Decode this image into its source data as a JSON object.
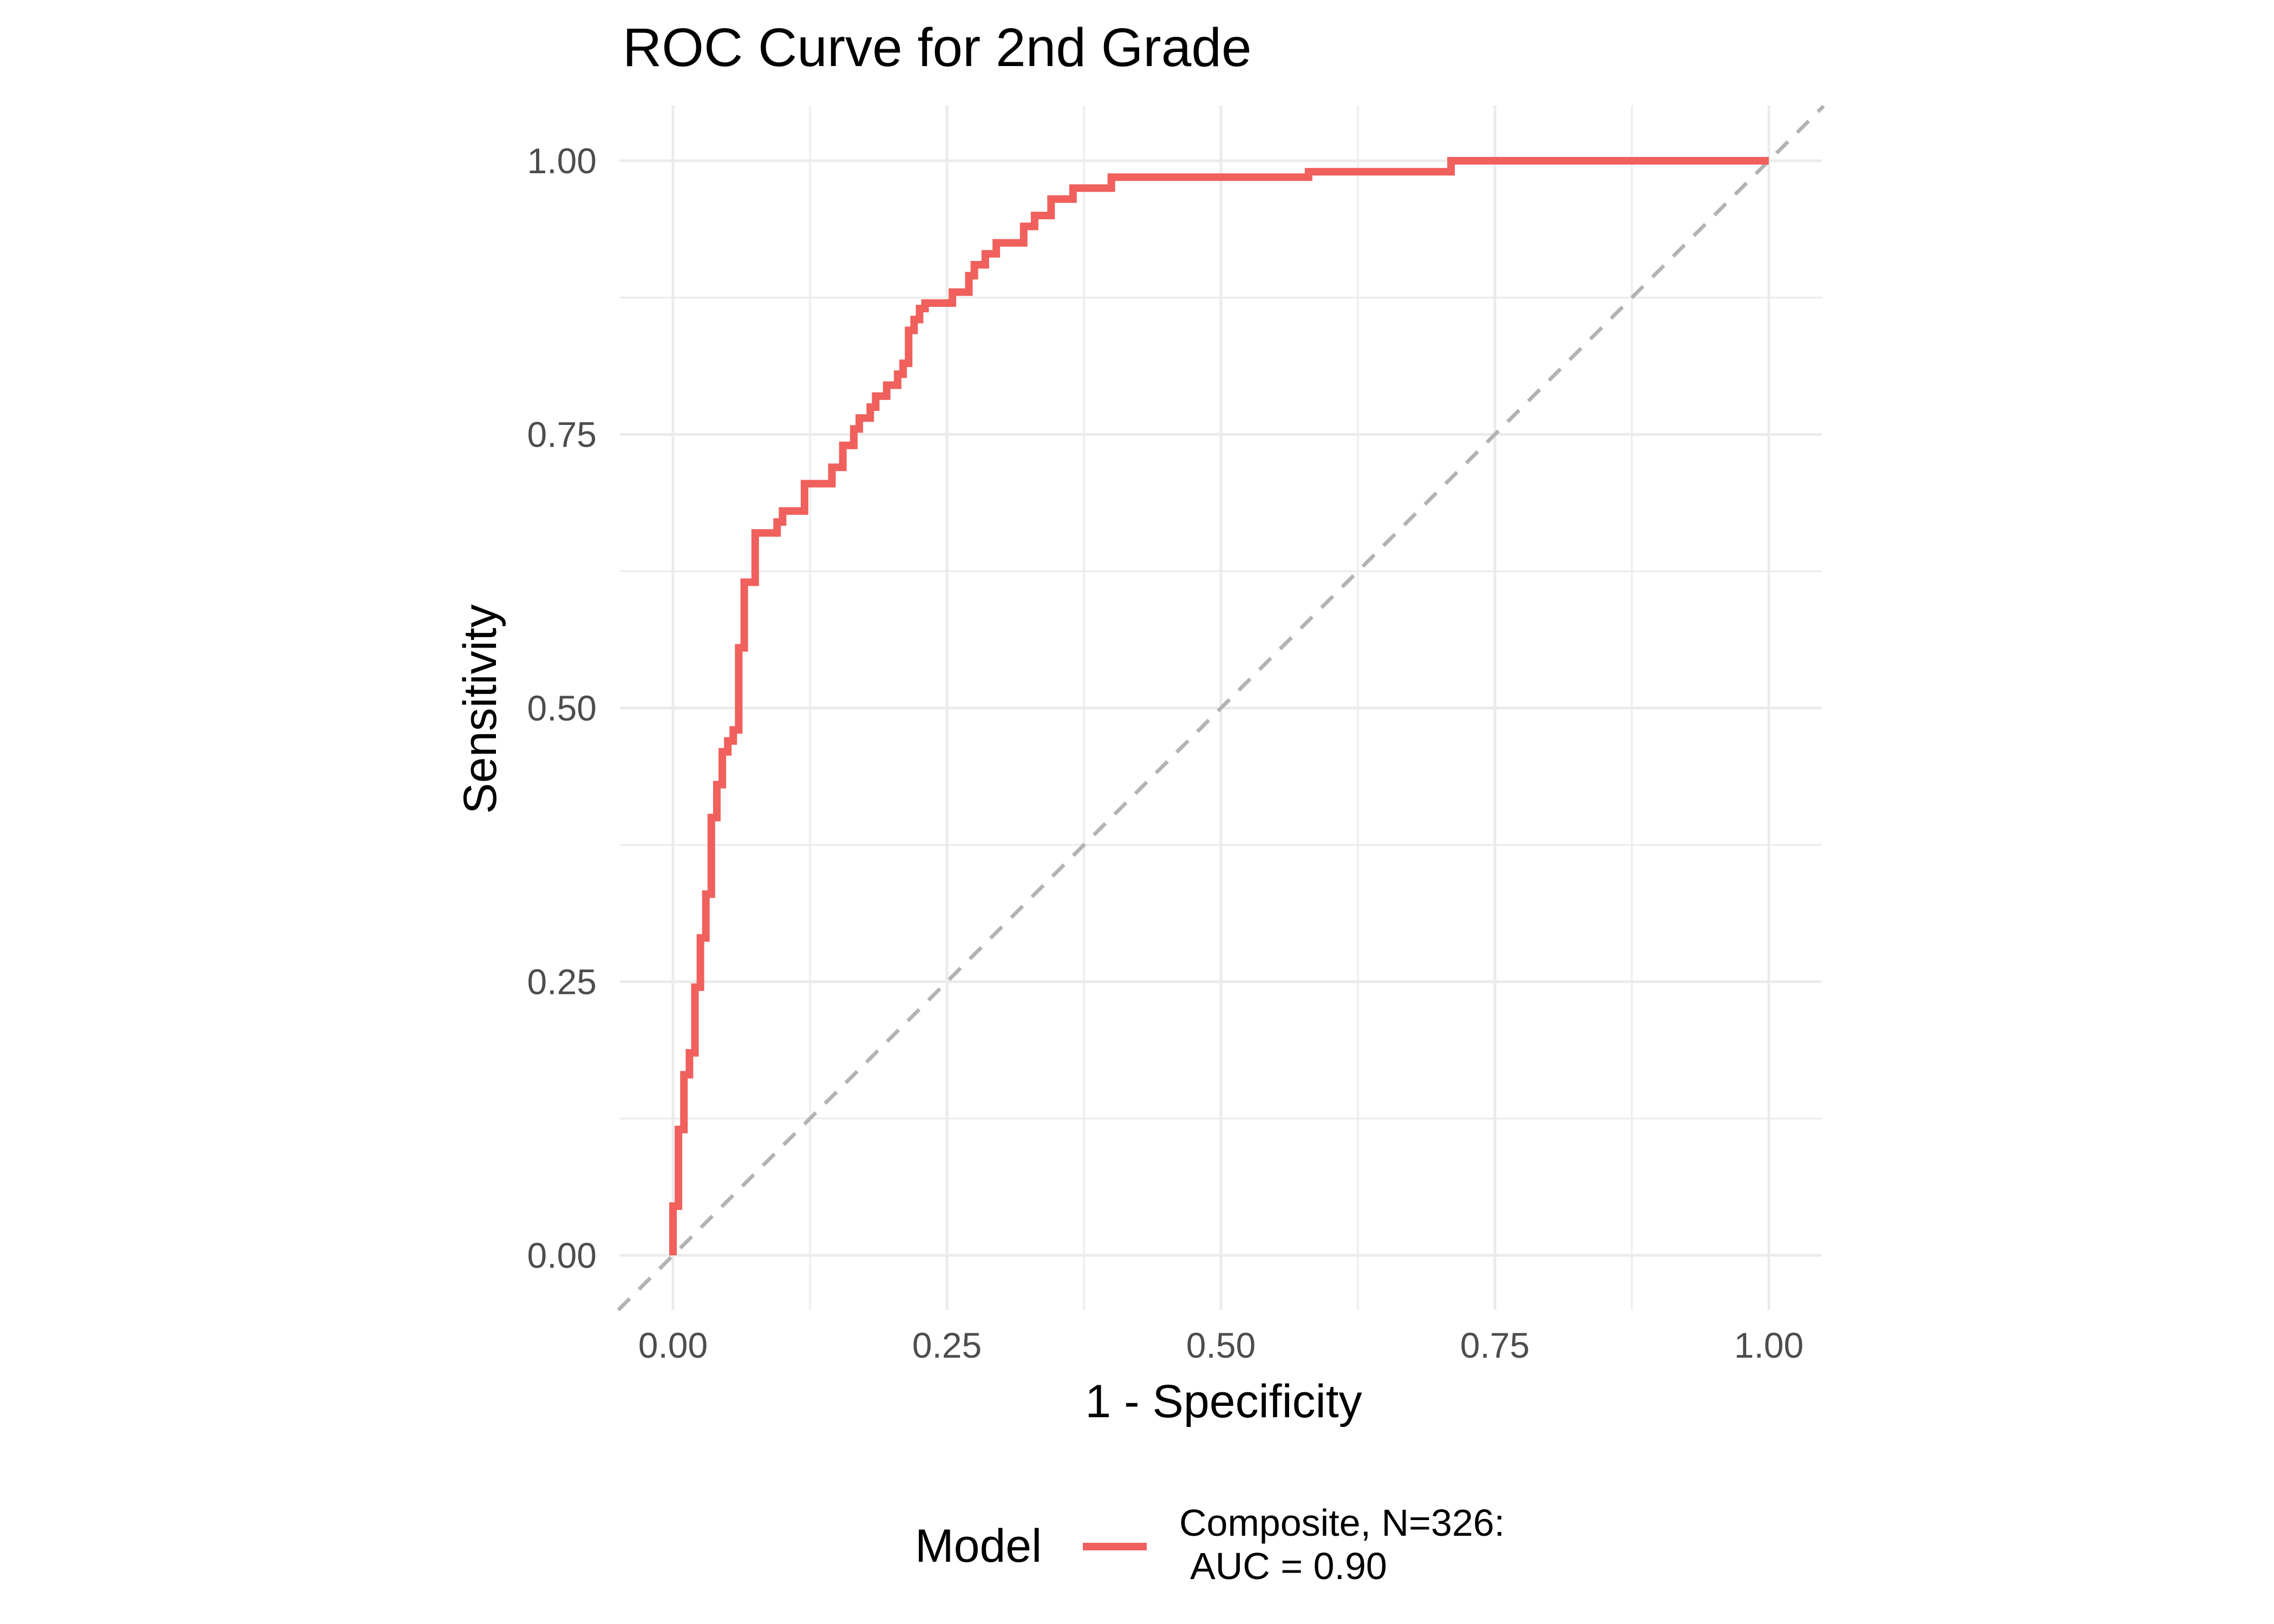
{
  "chart_data": {
    "type": "line",
    "title": "ROC Curve for 2nd Grade",
    "xlabel": "1 - Specificity",
    "ylabel": "Sensitivity",
    "xlim": [
      0,
      1
    ],
    "ylim": [
      0,
      1
    ],
    "x_ticks": [
      "0.00",
      "0.25",
      "0.50",
      "0.75",
      "1.00"
    ],
    "y_ticks": [
      "0.00",
      "0.25",
      "0.50",
      "0.75",
      "1.00"
    ],
    "grid": true,
    "legend": {
      "position": "bottom",
      "title": "Model",
      "entries": [
        {
          "line1": "Composite, N=326:",
          "line2": "AUC = 0.90",
          "color": "#F0605C"
        }
      ]
    },
    "reference_line": {
      "style": "dashed",
      "color": "#b3b3b3",
      "from": [
        0,
        0
      ],
      "to": [
        1,
        1
      ]
    },
    "series": [
      {
        "name": "Composite, N=326: AUC = 0.90",
        "color": "#F0605C",
        "points": [
          [
            0.0,
            0.0
          ],
          [
            0.0,
            0.045
          ],
          [
            0.005,
            0.045
          ],
          [
            0.005,
            0.115
          ],
          [
            0.01,
            0.115
          ],
          [
            0.01,
            0.165
          ],
          [
            0.015,
            0.165
          ],
          [
            0.015,
            0.185
          ],
          [
            0.02,
            0.185
          ],
          [
            0.02,
            0.245
          ],
          [
            0.025,
            0.245
          ],
          [
            0.025,
            0.29
          ],
          [
            0.03,
            0.29
          ],
          [
            0.03,
            0.33
          ],
          [
            0.035,
            0.33
          ],
          [
            0.035,
            0.4
          ],
          [
            0.04,
            0.4
          ],
          [
            0.04,
            0.43
          ],
          [
            0.045,
            0.43
          ],
          [
            0.045,
            0.46
          ],
          [
            0.05,
            0.46
          ],
          [
            0.05,
            0.47
          ],
          [
            0.055,
            0.47
          ],
          [
            0.055,
            0.48
          ],
          [
            0.06,
            0.48
          ],
          [
            0.06,
            0.555
          ],
          [
            0.065,
            0.555
          ],
          [
            0.065,
            0.615
          ],
          [
            0.075,
            0.615
          ],
          [
            0.075,
            0.66
          ],
          [
            0.095,
            0.66
          ],
          [
            0.095,
            0.67
          ],
          [
            0.1,
            0.67
          ],
          [
            0.1,
            0.68
          ],
          [
            0.12,
            0.68
          ],
          [
            0.12,
            0.705
          ],
          [
            0.145,
            0.705
          ],
          [
            0.145,
            0.72
          ],
          [
            0.155,
            0.72
          ],
          [
            0.155,
            0.74
          ],
          [
            0.165,
            0.74
          ],
          [
            0.165,
            0.755
          ],
          [
            0.17,
            0.755
          ],
          [
            0.17,
            0.765
          ],
          [
            0.18,
            0.765
          ],
          [
            0.18,
            0.775
          ],
          [
            0.185,
            0.775
          ],
          [
            0.185,
            0.785
          ],
          [
            0.195,
            0.785
          ],
          [
            0.195,
            0.795
          ],
          [
            0.205,
            0.795
          ],
          [
            0.205,
            0.805
          ],
          [
            0.21,
            0.805
          ],
          [
            0.21,
            0.815
          ],
          [
            0.215,
            0.815
          ],
          [
            0.215,
            0.845
          ],
          [
            0.22,
            0.845
          ],
          [
            0.22,
            0.855
          ],
          [
            0.225,
            0.855
          ],
          [
            0.225,
            0.865
          ],
          [
            0.23,
            0.865
          ],
          [
            0.23,
            0.87
          ],
          [
            0.255,
            0.87
          ],
          [
            0.255,
            0.88
          ],
          [
            0.27,
            0.88
          ],
          [
            0.27,
            0.895
          ],
          [
            0.275,
            0.895
          ],
          [
            0.275,
            0.905
          ],
          [
            0.285,
            0.905
          ],
          [
            0.285,
            0.915
          ],
          [
            0.295,
            0.915
          ],
          [
            0.295,
            0.925
          ],
          [
            0.32,
            0.925
          ],
          [
            0.32,
            0.94
          ],
          [
            0.33,
            0.94
          ],
          [
            0.33,
            0.95
          ],
          [
            0.345,
            0.95
          ],
          [
            0.345,
            0.965
          ],
          [
            0.365,
            0.965
          ],
          [
            0.365,
            0.975
          ],
          [
            0.4,
            0.975
          ],
          [
            0.4,
            0.985
          ],
          [
            0.58,
            0.985
          ],
          [
            0.58,
            0.99
          ],
          [
            0.71,
            0.99
          ],
          [
            0.71,
            1.0
          ],
          [
            1.0,
            1.0
          ]
        ]
      }
    ]
  }
}
